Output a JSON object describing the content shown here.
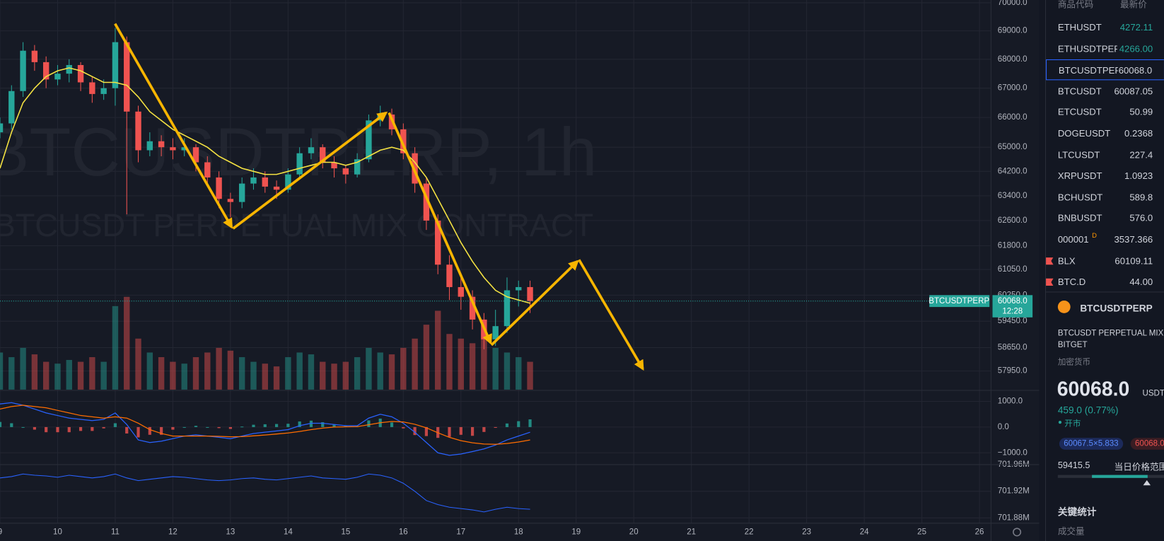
{
  "chart_data": {
    "type": "candlestick",
    "watermark": "BTCUSDTPERP, 1h",
    "watermark_sub": "BTCUSDT PERPETUAL MIX CONTRACT",
    "symbol_tag": "BTCUSDTPERP",
    "last_price": {
      "value": 60068,
      "label": "60068.0"
    },
    "countdown": "12:28",
    "log": true,
    "grid": true,
    "up_color": "#26a69a",
    "down_color": "#ef5350",
    "ma_color": "#f5e342",
    "xlim": [
      9,
      26.2
    ],
    "xticks": [
      9,
      10,
      11,
      12,
      13,
      14,
      15,
      16,
      17,
      18,
      19,
      20,
      21,
      22,
      23,
      24,
      25,
      26
    ],
    "ylim": [
      57400,
      70100
    ],
    "yticks": [
      {
        "value": 70000,
        "label": "70000.0"
      },
      {
        "value": 69000,
        "label": "69000.0"
      },
      {
        "value": 68000,
        "label": "68000.0"
      },
      {
        "value": 67000,
        "label": "67000.0"
      },
      {
        "value": 66000,
        "label": "66000.0"
      },
      {
        "value": 65000,
        "label": "65000.0"
      },
      {
        "value": 64200,
        "label": "64200.0"
      },
      {
        "value": 63400,
        "label": "63400.0"
      },
      {
        "value": 62600,
        "label": "62600.0"
      },
      {
        "value": 61800,
        "label": "61800.0"
      },
      {
        "value": 61050,
        "label": "61050.0"
      },
      {
        "value": 60250,
        "label": "60250.0"
      },
      {
        "value": 59450,
        "label": "59450.0"
      },
      {
        "value": 58650,
        "label": "58650.0"
      },
      {
        "value": 57950,
        "label": "57950.0"
      }
    ],
    "x": [
      9.0,
      9.2,
      9.4,
      9.6,
      9.8,
      10.0,
      10.2,
      10.4,
      10.6,
      10.8,
      11.0,
      11.2,
      11.4,
      11.6,
      11.8,
      12.0,
      12.2,
      12.4,
      12.6,
      12.8,
      13.0,
      13.2,
      13.4,
      13.6,
      13.8,
      14.0,
      14.2,
      14.4,
      14.6,
      14.8,
      15.0,
      15.2,
      15.4,
      15.6,
      15.8,
      16.0,
      16.2,
      16.4,
      16.6,
      16.8,
      17.0,
      17.2,
      17.4,
      17.6,
      17.8,
      18.0,
      18.2
    ],
    "ohlc": [
      [
        65500,
        66000,
        65300,
        65800
      ],
      [
        65800,
        67100,
        65600,
        66900
      ],
      [
        66900,
        68600,
        66700,
        68300
      ],
      [
        68300,
        68500,
        67600,
        67900
      ],
      [
        67900,
        68100,
        67000,
        67300
      ],
      [
        67300,
        67800,
        67100,
        67500
      ],
      [
        67500,
        68000,
        67200,
        67800
      ],
      [
        67800,
        67900,
        66900,
        67200
      ],
      [
        67200,
        67400,
        66500,
        66800
      ],
      [
        66800,
        67300,
        66600,
        67000
      ],
      [
        67000,
        69100,
        66400,
        68600
      ],
      [
        68600,
        68800,
        62800,
        66200
      ],
      [
        66200,
        66400,
        64500,
        64900
      ],
      [
        64900,
        65500,
        64700,
        65200
      ],
      [
        65200,
        65400,
        64700,
        65000
      ],
      [
        65000,
        65300,
        64600,
        64900
      ],
      [
        64900,
        65300,
        64700,
        65000
      ],
      [
        65000,
        65100,
        64200,
        64500
      ],
      [
        64500,
        64700,
        63700,
        64000
      ],
      [
        64000,
        64200,
        63000,
        63300
      ],
      [
        63300,
        63500,
        62700,
        63200
      ],
      [
        63200,
        64000,
        63000,
        63800
      ],
      [
        63800,
        64300,
        63600,
        64000
      ],
      [
        64000,
        64200,
        63500,
        63700
      ],
      [
        63700,
        63900,
        63300,
        63600
      ],
      [
        63600,
        64300,
        63500,
        64100
      ],
      [
        64100,
        65000,
        64000,
        64800
      ],
      [
        64800,
        65300,
        64600,
        65000
      ],
      [
        65000,
        65100,
        64300,
        64500
      ],
      [
        64500,
        64700,
        64000,
        64300
      ],
      [
        64300,
        64400,
        63800,
        64100
      ],
      [
        64100,
        64800,
        64000,
        64600
      ],
      [
        64600,
        66100,
        64500,
        65900
      ],
      [
        65900,
        66400,
        65700,
        66100
      ],
      [
        66100,
        66300,
        65400,
        65600
      ],
      [
        65600,
        65800,
        64600,
        64800
      ],
      [
        64800,
        65000,
        63500,
        63800
      ],
      [
        63800,
        64000,
        62300,
        62600
      ],
      [
        62600,
        62800,
        60900,
        61200
      ],
      [
        61200,
        61500,
        60100,
        60500
      ],
      [
        60500,
        60800,
        59800,
        60200
      ],
      [
        60200,
        60400,
        59200,
        59500
      ],
      [
        59500,
        59700,
        58600,
        58900
      ],
      [
        58900,
        59800,
        58700,
        59300
      ],
      [
        59300,
        60800,
        59100,
        60400
      ],
      [
        60400,
        60700,
        59900,
        60500
      ],
      [
        60500,
        60700,
        59700,
        60068
      ]
    ],
    "ma": [
      64300,
      65500,
      66500,
      67000,
      67400,
      67600,
      67700,
      67600,
      67400,
      67200,
      67200,
      67100,
      66700,
      66200,
      65900,
      65600,
      65400,
      65200,
      65000,
      64700,
      64500,
      64300,
      64200,
      64100,
      64100,
      64200,
      64300,
      64400,
      64500,
      64500,
      64400,
      64500,
      64700,
      64900,
      65000,
      64900,
      64500,
      64000,
      63300,
      62600,
      61900,
      61300,
      60800,
      60400,
      60200,
      60100,
      60000
    ],
    "volume": [
      40,
      35,
      45,
      38,
      30,
      28,
      32,
      30,
      35,
      30,
      90,
      100,
      55,
      40,
      35,
      30,
      28,
      35,
      40,
      45,
      42,
      35,
      30,
      28,
      25,
      35,
      40,
      38,
      30,
      28,
      30,
      35,
      45,
      40,
      38,
      45,
      55,
      70,
      85,
      60,
      55,
      50,
      65,
      45,
      40,
      35,
      30
    ],
    "macd": {
      "ylim": [
        -1430,
        1400
      ],
      "yticks": [
        {
          "value": 1000,
          "label": "1000.0"
        },
        {
          "value": 0,
          "label": "0.0"
        },
        {
          "value": -1000,
          "label": "−1000.0"
        }
      ],
      "macd_color": "#2962ff",
      "signal_color": "#ff6d00",
      "macd": [
        900,
        950,
        850,
        700,
        550,
        450,
        350,
        300,
        250,
        300,
        550,
        100,
        -500,
        -600,
        -550,
        -450,
        -350,
        -300,
        -350,
        -400,
        -450,
        -350,
        -250,
        -200,
        -150,
        -100,
        50,
        150,
        150,
        100,
        50,
        50,
        350,
        500,
        400,
        150,
        -200,
        -600,
        -1000,
        -1100,
        -1050,
        -950,
        -850,
        -700,
        -500,
        -350,
        -200
      ],
      "signal": [
        700,
        800,
        850,
        800,
        750,
        650,
        550,
        450,
        400,
        350,
        400,
        350,
        150,
        -100,
        -250,
        -350,
        -350,
        -350,
        -350,
        -360,
        -380,
        -370,
        -340,
        -310,
        -270,
        -230,
        -170,
        -100,
        -40,
        0,
        10,
        20,
        90,
        170,
        220,
        200,
        110,
        -30,
        -220,
        -400,
        -530,
        -610,
        -660,
        -670,
        -640,
        -580,
        -500
      ],
      "hist": [
        200,
        150,
        0,
        -100,
        -200,
        -200,
        -200,
        -150,
        -150,
        -50,
        150,
        -250,
        -400,
        -300,
        -300,
        -100,
        0,
        50,
        0,
        -40,
        -70,
        20,
        90,
        110,
        120,
        130,
        220,
        250,
        190,
        100,
        40,
        30,
        260,
        330,
        180,
        -50,
        -310,
        -350,
        -420,
        -380,
        -300,
        -340,
        -190,
        -30,
        140,
        230,
        300
      ]
    },
    "indicator": {
      "ylim": [
        701.872,
        701.959
      ],
      "yticks": [
        {
          "value": 701.96,
          "label": "701.96M"
        },
        {
          "value": 701.92,
          "label": "701.92M"
        },
        {
          "value": 701.88,
          "label": "701.88M"
        }
      ],
      "color": "#2962ff",
      "values": [
        701.94,
        701.942,
        701.946,
        701.944,
        701.943,
        701.941,
        701.944,
        701.942,
        701.94,
        701.942,
        701.946,
        701.94,
        701.936,
        701.938,
        701.94,
        701.942,
        701.941,
        701.939,
        701.937,
        701.936,
        701.937,
        701.939,
        701.94,
        701.938,
        701.937,
        701.939,
        701.941,
        701.943,
        701.94,
        701.939,
        701.938,
        701.941,
        701.946,
        701.944,
        701.94,
        701.932,
        701.92,
        701.906,
        701.9,
        701.896,
        701.894,
        701.892,
        701.889,
        701.893,
        701.896,
        701.894,
        701.893
      ]
    }
  },
  "watchlist": {
    "header": [
      "商品代码",
      "最新价"
    ],
    "rows": [
      {
        "symbol": "ETHUSDT",
        "price": "4272.11"
      },
      {
        "symbol": "ETHUSDTPERP",
        "price": "4266.00"
      },
      {
        "symbol": "BTCUSDTPERP",
        "price": "60068.0"
      },
      {
        "symbol": "BTCUSDT",
        "price": "60087.05"
      },
      {
        "symbol": "ETCUSDT",
        "price": "50.99"
      },
      {
        "symbol": "DOGEUSDT",
        "price": "0.2368"
      },
      {
        "symbol": "LTCUSDT",
        "price": "227.4"
      },
      {
        "symbol": "XRPUSDT",
        "price": "1.0923"
      },
      {
        "symbol": "BCHUSDT",
        "price": "589.8"
      },
      {
        "symbol": "BNBUSDT",
        "price": "576.0"
      },
      {
        "symbol": "000001",
        "badge": "D",
        "price": "3537.366"
      },
      {
        "symbol": "BLX",
        "price": "60109.11"
      },
      {
        "symbol": "BTC.D",
        "price": "44.00"
      }
    ]
  },
  "details": {
    "symbol": "BTCUSDTPERP",
    "description": "BTCUSDT PERPETUAL MIX CONTRACT",
    "exchange": "BITGET",
    "category": "加密货币",
    "price": "60068.0",
    "currency": "USDT",
    "change": "459.0 (0.77%)",
    "status": "开市",
    "bid": "60067.5×5.833",
    "ask": "60068.0",
    "day_low": "59415.5",
    "day_range_label": "当日价格范围",
    "stats_title": "关键统计",
    "volume_label": "成交量"
  }
}
